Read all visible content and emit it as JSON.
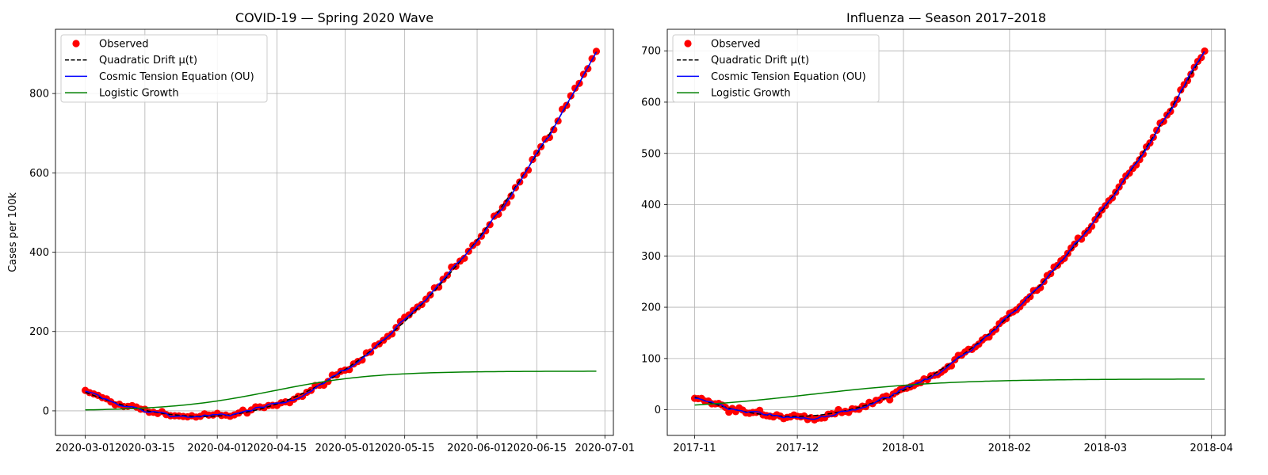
{
  "chart_data": [
    {
      "type": "line",
      "title": "COVID-19 — Spring 2020 Wave",
      "xlabel": "",
      "ylabel": "Cases per 100k",
      "x_axis_type": "date",
      "xlim": [
        "2020-02-23",
        "2020-07-03"
      ],
      "ylim": [
        -62,
        962
      ],
      "xticks": [
        "2020-03-01",
        "2020-03-15",
        "2020-04-01",
        "2020-04-15",
        "2020-05-01",
        "2020-05-15",
        "2020-06-01",
        "2020-06-15",
        "2020-07-01"
      ],
      "yticks": [
        0,
        200,
        400,
        600,
        800
      ],
      "grid": true,
      "legend_position": "top-left",
      "date_range": [
        "2020-03-01",
        "2020-06-29"
      ],
      "series": [
        {
          "name": "Observed",
          "kind": "scatter",
          "color": "#ff0000",
          "points": [
            [
              "2020-03-01",
              57
            ],
            [
              "2020-03-08",
              18
            ],
            [
              "2020-03-15",
              -2
            ],
            [
              "2020-03-22",
              -12
            ],
            [
              "2020-04-01",
              -12
            ],
            [
              "2020-04-15",
              22
            ],
            [
              "2020-05-01",
              112
            ],
            [
              "2020-05-15",
              238
            ],
            [
              "2020-06-01",
              432
            ],
            [
              "2020-06-15",
              645
            ],
            [
              "2020-06-29",
              915
            ]
          ]
        },
        {
          "name": "Quadratic Drift μ(t)",
          "kind": "line",
          "color": "#000000",
          "dash": "dashed",
          "quadratic_fit": {
            "start": 47,
            "min_date": "2020-03-29",
            "min_value": -14,
            "end": 905
          }
        },
        {
          "name": "Cosmic Tension Equation (OU)",
          "kind": "line",
          "color": "#0000ff",
          "quadratic_fit": {
            "start": 47,
            "min_date": "2020-03-29",
            "min_value": -14,
            "end": 905
          }
        },
        {
          "name": "Logistic Growth",
          "kind": "line",
          "color": "#008000",
          "logistic": {
            "capacity": 100,
            "midpoint": "2020-04-14",
            "rate_per_day": 0.085
          }
        }
      ]
    },
    {
      "type": "line",
      "title": "Influenza — Season 2017–2018",
      "xlabel": "",
      "ylabel": "",
      "x_axis_type": "date",
      "xlim": [
        "2017-10-24",
        "2018-04-05"
      ],
      "ylim": [
        -50,
        742
      ],
      "xticks": [
        "2017-11",
        "2017-12",
        "2018-01",
        "2018-02",
        "2018-03",
        "2018-04"
      ],
      "xtick_dates": [
        "2017-11-01",
        "2017-12-01",
        "2018-01-01",
        "2018-02-01",
        "2018-03-01",
        "2018-04-01"
      ],
      "yticks": [
        0,
        100,
        200,
        300,
        400,
        500,
        600,
        700
      ],
      "grid": true,
      "legend_position": "top-left",
      "date_range": [
        "2017-11-01",
        "2018-03-30"
      ],
      "series": [
        {
          "name": "Observed",
          "kind": "scatter",
          "color": "#ff0000",
          "points": [
            [
              "2017-11-01",
              32
            ],
            [
              "2017-11-15",
              5
            ],
            [
              "2017-12-01",
              -12
            ],
            [
              "2017-12-15",
              -8
            ],
            [
              "2018-01-01",
              30
            ],
            [
              "2018-01-15",
              85
            ],
            [
              "2018-02-01",
              175
            ],
            [
              "2018-02-15",
              270
            ],
            [
              "2018-03-01",
              390
            ],
            [
              "2018-03-15",
              530
            ],
            [
              "2018-03-30",
              705
            ]
          ]
        },
        {
          "name": "Quadratic Drift μ(t)",
          "kind": "line",
          "color": "#000000",
          "dash": "dashed",
          "quadratic_fit": {
            "start": 25,
            "min_date": "2017-11-30",
            "min_value": -13,
            "end": 700
          }
        },
        {
          "name": "Cosmic Tension Equation (OU)",
          "kind": "line",
          "color": "#0000ff",
          "quadratic_fit": {
            "start": 25,
            "min_date": "2017-11-30",
            "min_value": -13,
            "end": 700
          }
        },
        {
          "name": "Logistic Growth",
          "kind": "line",
          "color": "#008000",
          "logistic": {
            "capacity": 60,
            "midpoint": "2017-12-05",
            "rate_per_day": 0.05
          }
        }
      ]
    }
  ]
}
